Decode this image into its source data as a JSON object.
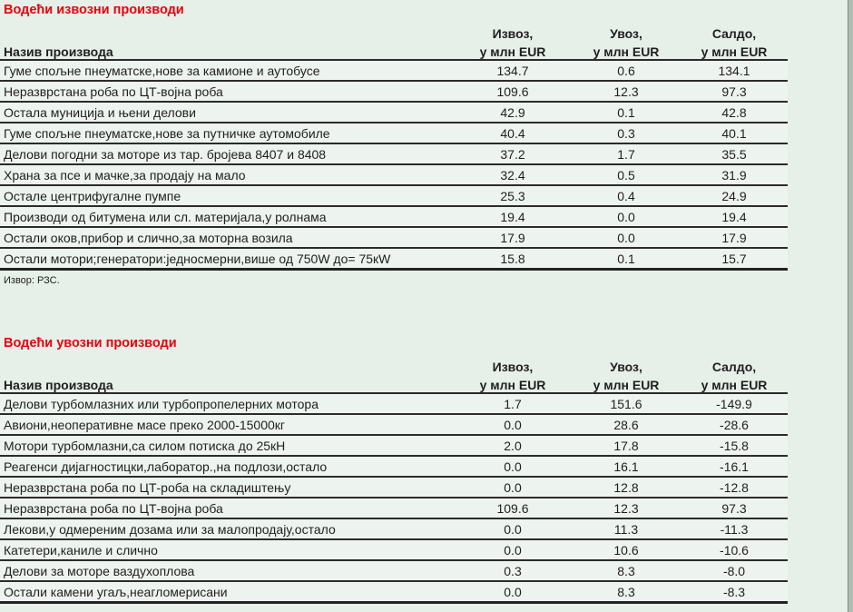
{
  "colors": {
    "title_red": "#e8000d",
    "page_bg": "#e6efe8",
    "row_bg": "#edf3ee",
    "line": "#2b2b2b"
  },
  "source_note": "Извор: РЗС.",
  "tables": [
    {
      "title": "Водећи извозни производи",
      "name_header": "Назив производа",
      "col_headers": [
        {
          "line1": "Извоз,",
          "line2": "у млн EUR"
        },
        {
          "line1": "Увоз,",
          "line2": "у млн EUR"
        },
        {
          "line1": "Салдо,",
          "line2": "у млн EUR"
        }
      ],
      "rows": [
        {
          "name": "Гуме спољне пнеуматске,нове за камионе и аутобусе",
          "values": [
            "134.7",
            "0.6",
            "134.1"
          ]
        },
        {
          "name": "Неразврстана роба по ЦТ-војна роба",
          "values": [
            "109.6",
            "12.3",
            "97.3"
          ]
        },
        {
          "name": "Остала муниција и њени делови",
          "values": [
            "42.9",
            "0.1",
            "42.8"
          ]
        },
        {
          "name": "Гуме спољне пнеуматске,нове за путничке аутомобиле",
          "values": [
            "40.4",
            "0.3",
            "40.1"
          ]
        },
        {
          "name": "Делови погодни за моторе из тар. бројева 8407 и 8408",
          "values": [
            "37.2",
            "1.7",
            "35.5"
          ]
        },
        {
          "name": "Храна за псе и мачке,за продају на мало",
          "values": [
            "32.4",
            "0.5",
            "31.9"
          ]
        },
        {
          "name": "Остале центрифугалне пумпе",
          "values": [
            "25.3",
            "0.4",
            "24.9"
          ]
        },
        {
          "name": "Производи од битумена или сл. материјала,у ролнама",
          "values": [
            "19.4",
            "0.0",
            "19.4"
          ]
        },
        {
          "name": "Остали оков,прибор и слично,за моторна возила",
          "values": [
            "17.9",
            "0.0",
            "17.9"
          ]
        },
        {
          "name": "Остали мотори;генератори:једносмерни,више од 750W до= 75кW",
          "values": [
            "15.8",
            "0.1",
            "15.7"
          ]
        }
      ]
    },
    {
      "title": "Водећи увозни производи",
      "name_header": "Назив производа",
      "col_headers": [
        {
          "line1": "Извоз,",
          "line2": "у млн EUR"
        },
        {
          "line1": "Увоз,",
          "line2": "у млн EUR"
        },
        {
          "line1": "Салдо,",
          "line2": "у млн EUR"
        }
      ],
      "rows": [
        {
          "name": "Делови турбомлазних или турбопропелерних мотора",
          "values": [
            "1.7",
            "151.6",
            "-149.9"
          ]
        },
        {
          "name": "Авиони,неоперативне масе преко 2000-15000кг",
          "values": [
            "0.0",
            "28.6",
            "-28.6"
          ]
        },
        {
          "name": "Мотори турбомлазни,са силом потиска до 25кН",
          "values": [
            "2.0",
            "17.8",
            "-15.8"
          ]
        },
        {
          "name": "Реагенси дијагностицки,лаборатор.,на подлози,остало",
          "values": [
            "0.0",
            "16.1",
            "-16.1"
          ]
        },
        {
          "name": "Неразврстана роба по ЦТ-роба на складиштењу",
          "values": [
            "0.0",
            "12.8",
            "-12.8"
          ]
        },
        {
          "name": "Неразврстана роба по ЦТ-војна роба",
          "values": [
            "109.6",
            "12.3",
            "97.3"
          ]
        },
        {
          "name": "Лекови,у одмереним дозама или за малопродају,остало",
          "values": [
            "0.0",
            "11.3",
            "-11.3"
          ]
        },
        {
          "name": "Катетери,каниле и слично",
          "values": [
            "0.0",
            "10.6",
            "-10.6"
          ]
        },
        {
          "name": "Делови за моторе ваздухоплова",
          "values": [
            "0.3",
            "8.3",
            "-8.0"
          ]
        },
        {
          "name": "Остали камени угаљ,неагломерисани",
          "values": [
            "0.0",
            "8.3",
            "-8.3"
          ]
        }
      ]
    }
  ]
}
